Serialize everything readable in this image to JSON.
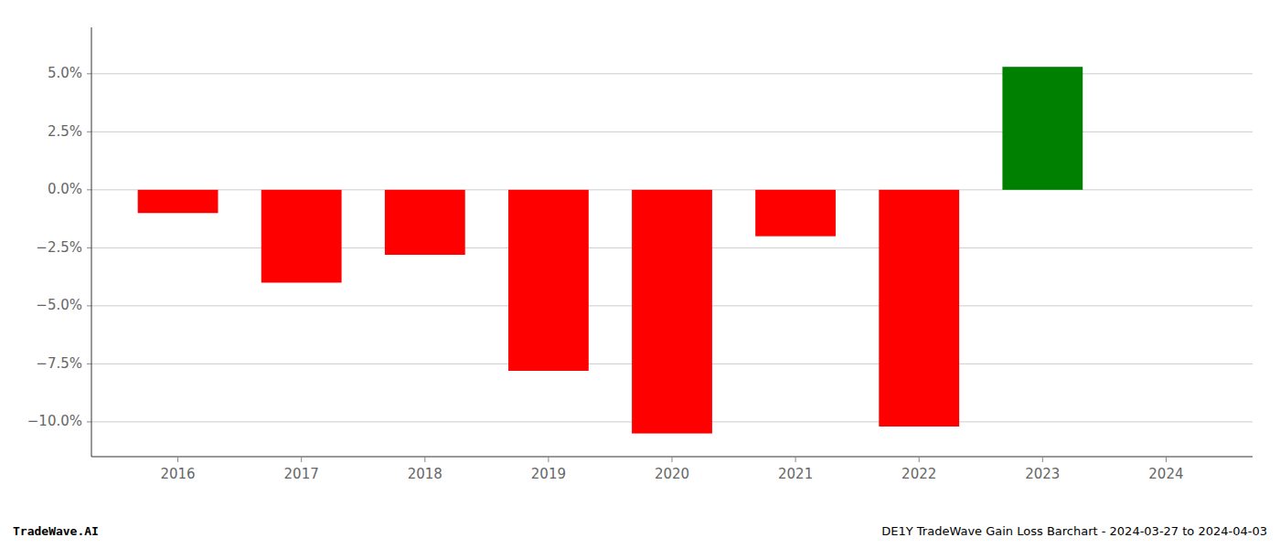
{
  "chart_data": {
    "type": "bar",
    "title": "DE1Y TradeWave Gain Loss Barchart - 2024-03-27 to 2024-04-03",
    "annotations": [
      "TradeWave.AI"
    ],
    "x": [
      2016,
      2017,
      2018,
      2019,
      2020,
      2021,
      2022,
      2023
    ],
    "values": [
      -1.0,
      -4.0,
      -2.8,
      -7.8,
      -10.5,
      -2.0,
      -10.2,
      5.3
    ],
    "colors": [
      "#ff0000",
      "#ff0000",
      "#ff0000",
      "#ff0000",
      "#ff0000",
      "#ff0000",
      "#ff0000",
      "#008000"
    ],
    "xlim": [
      2015.3,
      2024.7
    ],
    "xticks": [
      2016,
      2017,
      2018,
      2019,
      2020,
      2021,
      2022,
      2023,
      2024
    ],
    "ylim": [
      -11.5,
      7.0
    ],
    "yticks": [
      {
        "value": -10.0,
        "label": "−10.0%"
      },
      {
        "value": -7.5,
        "label": "−7.5%"
      },
      {
        "value": -5.0,
        "label": "−5.0%"
      },
      {
        "value": -2.5,
        "label": "−2.5%"
      },
      {
        "value": 0.0,
        "label": "0.0%"
      },
      {
        "value": 2.5,
        "label": "2.5%"
      },
      {
        "value": 5.0,
        "label": "5.0%"
      }
    ],
    "grid": true
  }
}
